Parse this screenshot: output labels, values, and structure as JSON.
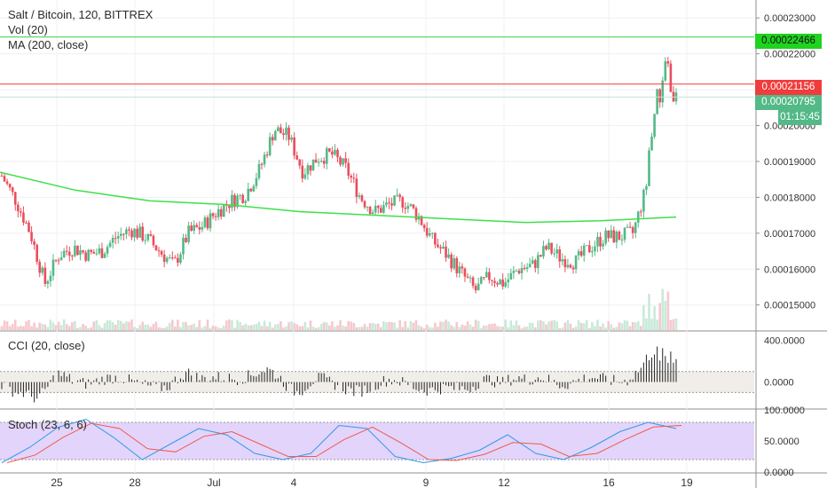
{
  "header": {
    "title": "Salt / Bitcoin, 120, BITTREX",
    "volume_study": "Vol (20)",
    "ma_study": "MA (200, close)"
  },
  "cci_panel": {
    "label": "CCI (20, close)"
  },
  "stoch_panel": {
    "label": "Stoch (23, 6, 6)"
  },
  "price_tags": {
    "green_line": "0.00022466",
    "red_line": "0.00021156",
    "last_price": "0.00020795",
    "countdown": "01:15:45"
  },
  "colors": {
    "up": "#53b987",
    "down": "#eb4d5c",
    "ma": "#3ee04a",
    "green_line": "#3dcc3d",
    "red_line": "#f03c3c",
    "stoch_fill": "#e3d4fb",
    "stoch_k": "#2f9ae8",
    "stoch_d": "#f05a4c"
  },
  "chart_data": [
    {
      "type": "candlestick",
      "title": "Salt / Bitcoin, 120, BITTREX",
      "y_ticks": [
        "0.00023000",
        "0.00022000",
        "0.00021000",
        "0.00020000",
        "0.00019000",
        "0.00018000",
        "0.00017000",
        "0.00016000",
        "0.00015000"
      ],
      "ylim": [
        0.000143,
        0.000235
      ],
      "x_ticks": [
        "25",
        "28",
        "Jul",
        "4",
        "9",
        "12",
        "16",
        "19"
      ],
      "horizontal_lines": [
        0.00022466,
        0.00021156
      ],
      "close_approx": [
        0.000186,
        0.000179,
        0.00017,
        0.000156,
        0.000164,
        0.000166,
        0.000164,
        0.000165,
        0.000169,
        0.000171,
        0.000169,
        0.000165,
        0.000161,
        0.00017,
        0.000172,
        0.000176,
        0.000179,
        0.000181,
        0.000188,
        0.000199,
        0.000197,
        0.000187,
        0.000191,
        0.000192,
        0.000188,
        0.00018,
        0.000176,
        0.000178,
        0.000179,
        0.000175,
        0.000168,
        0.000164,
        0.000159,
        0.000154,
        0.000158,
        0.000156,
        0.00016,
        0.000161,
        0.000166,
        0.000163,
        0.000162,
        0.000166,
        0.000169,
        0.000169,
        0.00017,
        0.000184,
        0.000212,
        0.000208
      ],
      "ma_200_approx": [
        0.000187,
        0.000182,
        0.000179,
        0.000178,
        0.000176,
        0.000175,
        0.000174,
        0.000173,
        0.0001735,
        0.0001745
      ]
    },
    {
      "type": "line",
      "title": "CCI (20, close)",
      "y_ticks": [
        "400.0000",
        "0.0000"
      ],
      "bands": [
        100,
        -100
      ],
      "peak_value_approx": 420
    },
    {
      "type": "line",
      "title": "Stoch (23, 6, 6)",
      "y_ticks": [
        "100.0000",
        "50.0000",
        "0.0000"
      ],
      "bands": [
        80,
        20
      ],
      "series": [
        {
          "name": "",
          "values": [
            15,
            40,
            72,
            85,
            55,
            20,
            45,
            70,
            60,
            30,
            20,
            30,
            75,
            70,
            25,
            15,
            22,
            35,
            60,
            30,
            20,
            40,
            65,
            80,
            70
          ]
        }
      ]
    }
  ]
}
